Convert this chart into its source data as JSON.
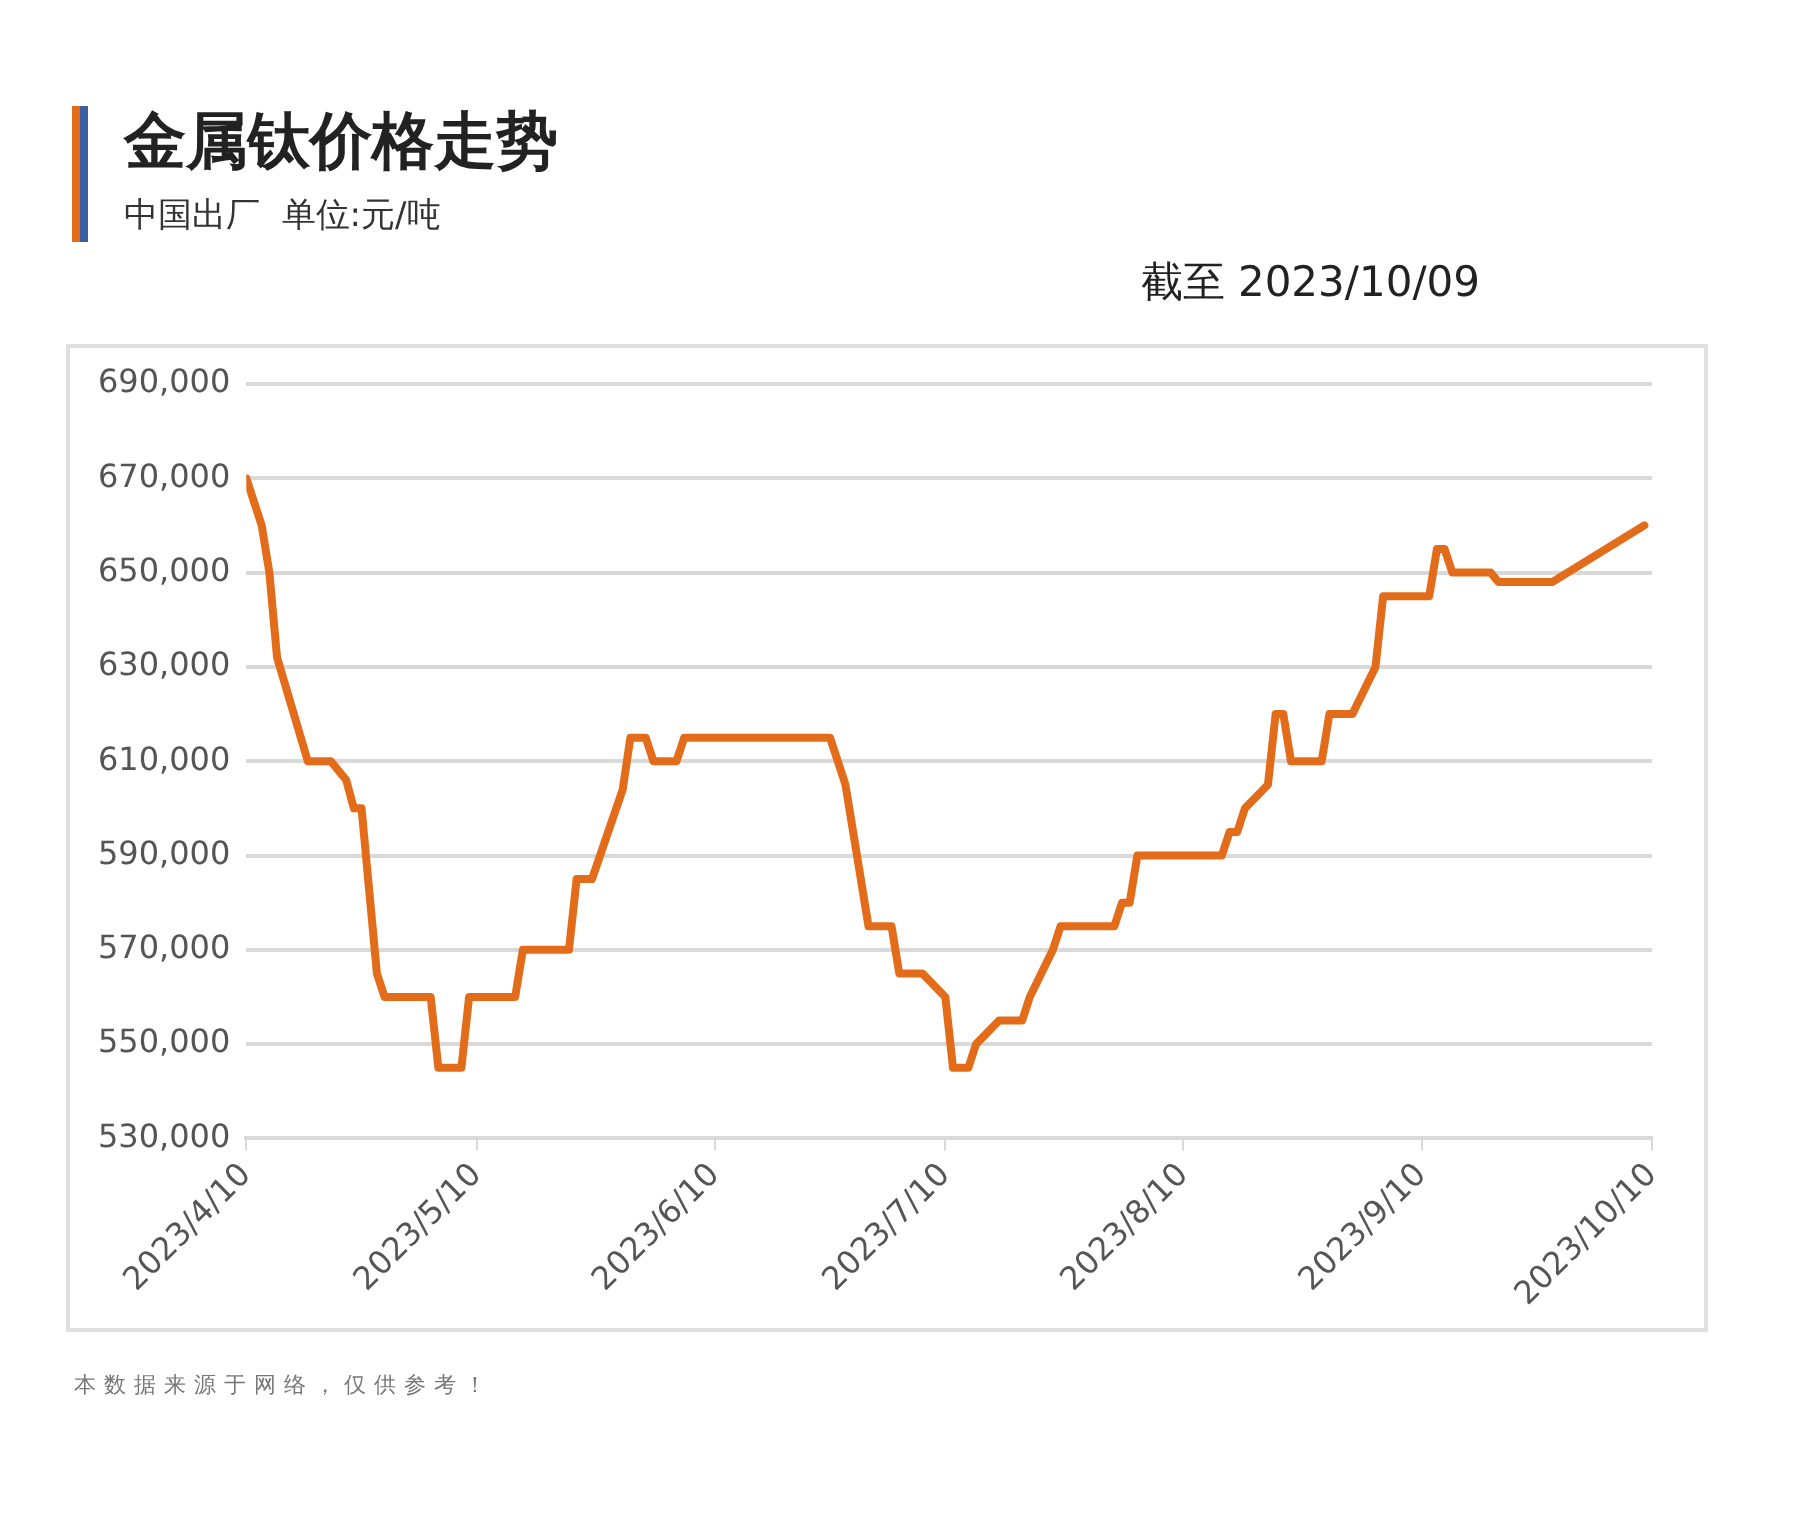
{
  "chart_data": {
    "type": "line",
    "title": "金属钛价格走势",
    "subtitle": "中国出厂  单位:元/吨",
    "annotations": [
      "截至 2023/10/09",
      "本数据来源于网络，仅供参考！"
    ],
    "x": [
      "2023-04-10",
      "2023-04-12",
      "2023-04-13",
      "2023-04-14",
      "2023-04-18",
      "2023-04-21",
      "2023-04-23",
      "2023-04-24",
      "2023-04-25",
      "2023-04-27",
      "2023-04-28",
      "2023-05-04",
      "2023-05-05",
      "2023-05-08",
      "2023-05-09",
      "2023-05-15",
      "2023-05-16",
      "2023-05-22",
      "2023-05-23",
      "2023-05-25",
      "2023-05-29",
      "2023-05-30",
      "2023-06-01",
      "2023-06-02",
      "2023-06-05",
      "2023-06-06",
      "2023-06-25",
      "2023-06-27",
      "2023-06-30",
      "2023-07-03",
      "2023-07-04",
      "2023-07-07",
      "2023-07-10",
      "2023-07-11",
      "2023-07-13",
      "2023-07-14",
      "2023-07-17",
      "2023-07-20",
      "2023-07-21",
      "2023-07-24",
      "2023-07-25",
      "2023-08-01",
      "2023-08-02",
      "2023-08-03",
      "2023-08-04",
      "2023-08-15",
      "2023-08-16",
      "2023-08-17",
      "2023-08-18",
      "2023-08-21",
      "2023-08-22",
      "2023-08-23",
      "2023-08-24",
      "2023-08-28",
      "2023-08-29",
      "2023-09-01",
      "2023-09-04",
      "2023-09-05",
      "2023-09-11",
      "2023-09-12",
      "2023-09-13",
      "2023-09-14",
      "2023-09-19",
      "2023-09-20",
      "2023-09-27",
      "2023-10-09"
    ],
    "series": [
      {
        "color": "#e36c1a",
        "values": [
          670000,
          660000,
          650000,
          632000,
          610000,
          610000,
          606000,
          600000,
          600000,
          565000,
          560000,
          560000,
          545000,
          545000,
          560000,
          560000,
          570000,
          570000,
          585000,
          585000,
          604000,
          615000,
          615000,
          610000,
          610000,
          615000,
          615000,
          605000,
          575000,
          575000,
          565000,
          565000,
          560000,
          545000,
          545000,
          550000,
          555000,
          555000,
          560000,
          570000,
          575000,
          575000,
          580000,
          580000,
          590000,
          590000,
          595000,
          595000,
          600000,
          605000,
          620000,
          620000,
          610000,
          610000,
          620000,
          620000,
          630000,
          645000,
          645000,
          655000,
          655000,
          650000,
          650000,
          648000,
          648000,
          660000
        ]
      }
    ],
    "xlim": [
      "2023-04-10",
      "2023-10-10"
    ],
    "xticks": [
      {
        "value": "2023-04-10",
        "label": "2023/4/10"
      },
      {
        "value": "2023-05-10",
        "label": "2023/5/10"
      },
      {
        "value": "2023-06-10",
        "label": "2023/6/10"
      },
      {
        "value": "2023-07-10",
        "label": "2023/7/10"
      },
      {
        "value": "2023-08-10",
        "label": "2023/8/10"
      },
      {
        "value": "2023-09-10",
        "label": "2023/9/10"
      },
      {
        "value": "2023-10-10",
        "label": "2023/10/10"
      }
    ],
    "ylim": [
      530000,
      690000
    ],
    "yticks": [
      {
        "value": 530000,
        "label": "530,000"
      },
      {
        "value": 550000,
        "label": "550,000"
      },
      {
        "value": 570000,
        "label": "570,000"
      },
      {
        "value": 590000,
        "label": "590,000"
      },
      {
        "value": 610000,
        "label": "610,000"
      },
      {
        "value": 630000,
        "label": "630,000"
      },
      {
        "value": 650000,
        "label": "650,000"
      },
      {
        "value": 670000,
        "label": "670,000"
      },
      {
        "value": 690000,
        "label": "690,000"
      }
    ],
    "grid": "y",
    "legend": false,
    "marker": "none",
    "line_style": "solid"
  }
}
